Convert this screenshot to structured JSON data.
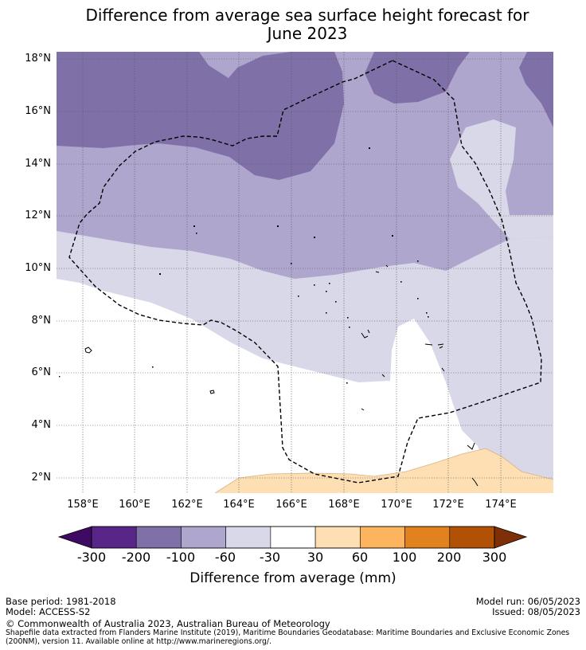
{
  "title": {
    "line1": "Difference from average sea surface height forecast for",
    "line2": "June 2023"
  },
  "map": {
    "lat_ticks": [
      "18°N",
      "16°N",
      "14°N",
      "12°N",
      "10°N",
      "8°N",
      "6°N",
      "4°N",
      "2°N"
    ],
    "lon_ticks": [
      "158°E",
      "160°E",
      "162°E",
      "164°E",
      "166°E",
      "168°E",
      "170°E",
      "172°E",
      "174°E"
    ],
    "boundary": "Exclusive Economic Zone (dashed)"
  },
  "colorbar": {
    "ticks": [
      "-300",
      "-200",
      "-100",
      "-60",
      "-30",
      "30",
      "60",
      "100",
      "200",
      "300"
    ],
    "title": "Difference from average (mm)",
    "colors": {
      "below_min": "#3f0a63",
      "bins": [
        "#582688",
        "#7f70a8",
        "#afa6ce",
        "#d8d8e9",
        "#ffffff",
        "#fddfb3",
        "#fdb45e",
        "#e2821e",
        "#b05106"
      ],
      "above_max": "#7e2f07"
    }
  },
  "footer": {
    "base_period": "Base period: 1981-2018",
    "model": "Model: ACCESS-S2",
    "model_run": "Model run: 06/05/2023",
    "issued": "Issued: 08/05/2023",
    "copyright": "© Commonwealth of Australia 2023, Australian Bureau of Meteorology",
    "source_line1": "Shapefile data extracted from Flanders Marine Institute (2019), Maritime Boundaries Geodatabase: Maritime Boundaries and Exclusive Economic Zones",
    "source_line2": "(200NM), version 11. Available online at http://www.marineregions.org/."
  }
}
